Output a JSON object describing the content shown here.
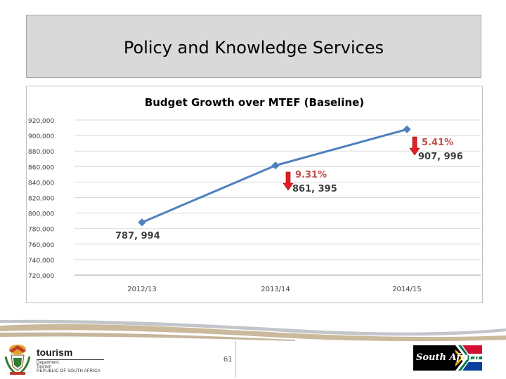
{
  "slide": {
    "title": "Policy and Knowledge Services",
    "page_number": "61"
  },
  "footer": {
    "tourism_logo": {
      "word": "tourism",
      "line1": "Department:",
      "line2": "Tourism",
      "line3": "REPUBLIC OF SOUTH AFRICA"
    },
    "sa_logo_text": "South Africa"
  },
  "colors": {
    "line": "#4f81bd",
    "growth_label": "#c0504d",
    "arrow": "#e31e24",
    "gridline": "#d9d9d9",
    "title_box": "#d9d9d9"
  },
  "chart_data": {
    "type": "line",
    "title": "Budget Growth over MTEF (Baseline)",
    "categories": [
      "2012/13",
      "2013/14",
      "2014/15"
    ],
    "series": [
      {
        "values": [
          787994,
          861395,
          907996
        ]
      }
    ],
    "data_labels": [
      "787, 994",
      "861, 395",
      "907, 996"
    ],
    "growth_labels": [
      "",
      "9.31%",
      "5.41%"
    ],
    "growth_arrows": [
      "none",
      "down",
      "down"
    ],
    "ylim": [
      720000,
      920000
    ],
    "yticks": [
      920000,
      900000,
      880000,
      860000,
      840000,
      820000,
      800000,
      780000,
      760000,
      740000,
      720000
    ],
    "ytick_labels": [
      "920,000",
      "900,000",
      "880,000",
      "860,000",
      "840,000",
      "820,000",
      "800,000",
      "780,000",
      "760,000",
      "740,000",
      "720,000"
    ],
    "grid": true,
    "legend": "none"
  }
}
